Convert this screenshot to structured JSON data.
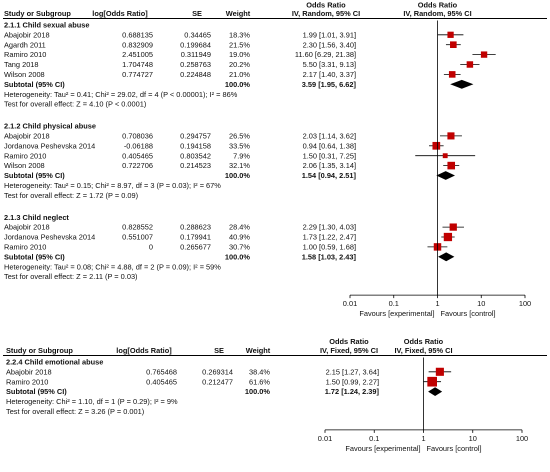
{
  "chart_data": [
    {
      "type": "forest",
      "headers": {
        "study": "Study or Subgroup",
        "logor": "log[Odds Ratio]",
        "se": "SE",
        "weight": "Weight",
        "or_title": "Odds Ratio",
        "ci": "IV, Random, 95% CI",
        "plot_title": "Odds Ratio",
        "plot_method": "IV, Random, 95% CI"
      },
      "axis": {
        "scale": "log",
        "ticks": [
          0.01,
          0.1,
          1,
          10,
          100
        ],
        "tick_labels": [
          "0.01",
          "0.1",
          "1",
          "10",
          "100"
        ]
      },
      "favours": {
        "left": "Favours [experimental]",
        "right": "Favours [control]"
      },
      "subgroups": [
        {
          "title": "2.1.1 Child sexual abuse",
          "studies": [
            {
              "name": "Abajobir 2018",
              "logor": "0.688135",
              "se": "0.34465",
              "weight": "18.3%",
              "ci": "1.99 [1.01, 3.91]",
              "or": 1.99,
              "lo": 1.01,
              "hi": 3.91,
              "w": 18.3
            },
            {
              "name": "Agardh 2011",
              "logor": "0.832909",
              "se": "0.199684",
              "weight": "21.5%",
              "ci": "2.30 [1.56, 3.40]",
              "or": 2.3,
              "lo": 1.56,
              "hi": 3.4,
              "w": 21.5
            },
            {
              "name": "Ramiro 2010",
              "logor": "2.451005",
              "se": "0.311949",
              "weight": "19.0%",
              "ci": "11.60 [6.29, 21.38]",
              "or": 11.6,
              "lo": 6.29,
              "hi": 21.38,
              "w": 19.0
            },
            {
              "name": "Tang 2018",
              "logor": "1.704748",
              "se": "0.258763",
              "weight": "20.2%",
              "ci": "5.50 [3.31, 9.13]",
              "or": 5.5,
              "lo": 3.31,
              "hi": 9.13,
              "w": 20.2
            },
            {
              "name": "Wilson 2008",
              "logor": "0.774727",
              "se": "0.224848",
              "weight": "21.0%",
              "ci": "2.17 [1.40, 3.37]",
              "or": 2.17,
              "lo": 1.4,
              "hi": 3.37,
              "w": 21.0
            }
          ],
          "subtotal": {
            "label": "Subtotal (95% CI)",
            "weight": "100.0%",
            "ci": "3.59 [1.95, 6.62]",
            "or": 3.59,
            "lo": 1.95,
            "hi": 6.62
          },
          "heterogeneity": "Heterogeneity: Tau² = 0.41; Chi² = 29.02, df = 4 (P < 0.00001); I² = 86%",
          "overall": "Test for overall effect: Z = 4.10 (P < 0.0001)"
        },
        {
          "title": "2.1.2 Child physical abuse",
          "studies": [
            {
              "name": "Abajobir 2018",
              "logor": "0.708036",
              "se": "0.294757",
              "weight": "26.5%",
              "ci": "2.03 [1.14, 3.62]",
              "or": 2.03,
              "lo": 1.14,
              "hi": 3.62,
              "w": 26.5
            },
            {
              "name": "Jordanova Peshevska 2014",
              "logor": "-0.06188",
              "se": "0.194158",
              "weight": "33.5%",
              "ci": "0.94 [0.64, 1.38]",
              "or": 0.94,
              "lo": 0.64,
              "hi": 1.38,
              "w": 33.5
            },
            {
              "name": "Ramiro 2010",
              "logor": "0.405465",
              "se": "0.803542",
              "weight": "7.9%",
              "ci": "1.50 [0.31, 7.25]",
              "or": 1.5,
              "lo": 0.31,
              "hi": 7.25,
              "w": 7.9
            },
            {
              "name": "Wilson 2008",
              "logor": "0.722706",
              "se": "0.214523",
              "weight": "32.1%",
              "ci": "2.06 [1.35, 3.14]",
              "or": 2.06,
              "lo": 1.35,
              "hi": 3.14,
              "w": 32.1
            }
          ],
          "subtotal": {
            "label": "Subtotal (95% CI)",
            "weight": "100.0%",
            "ci": "1.54 [0.94, 2.51]",
            "or": 1.54,
            "lo": 0.94,
            "hi": 2.51
          },
          "heterogeneity": "Heterogeneity: Tau² = 0.15; Chi² = 8.97, df = 3 (P = 0.03); I² = 67%",
          "overall": "Test for overall effect: Z = 1.72 (P = 0.09)"
        },
        {
          "title": "2.1.3 Child neglect",
          "studies": [
            {
              "name": "Abajobir 2018",
              "logor": "0.828552",
              "se": "0.288623",
              "weight": "28.4%",
              "ci": "2.29 [1.30, 4.03]",
              "or": 2.29,
              "lo": 1.3,
              "hi": 4.03,
              "w": 28.4
            },
            {
              "name": "Jordanova Peshevska 2014",
              "logor": "0.551007",
              "se": "0.179941",
              "weight": "40.9%",
              "ci": "1.73 [1.22, 2.47]",
              "or": 1.73,
              "lo": 1.22,
              "hi": 2.47,
              "w": 40.9
            },
            {
              "name": "Ramiro 2010",
              "logor": "0",
              "se": "0.265677",
              "weight": "30.7%",
              "ci": "1.00 [0.59, 1.68]",
              "or": 1.0,
              "lo": 0.59,
              "hi": 1.68,
              "w": 30.7
            }
          ],
          "subtotal": {
            "label": "Subtotal (95% CI)",
            "weight": "100.0%",
            "ci": "1.58 [1.03, 2.43]",
            "or": 1.58,
            "lo": 1.03,
            "hi": 2.43
          },
          "heterogeneity": "Heterogeneity: Tau² = 0.08; Chi² = 4.88, df = 2 (P = 0.09); I² = 59%",
          "overall": "Test for overall effect: Z = 2.11 (P = 0.03)"
        }
      ]
    },
    {
      "type": "forest",
      "headers": {
        "study": "Study or Subgroup",
        "logor": "log[Odds Ratio]",
        "se": "SE",
        "weight": "Weight",
        "or_title": "Odds Ratio",
        "ci": "IV, Fixed, 95% CI",
        "plot_title": "Odds Ratio",
        "plot_method": "IV, Fixed, 95% CI"
      },
      "axis": {
        "scale": "log",
        "ticks": [
          0.01,
          0.1,
          1,
          10,
          100
        ],
        "tick_labels": [
          "0.01",
          "0.1",
          "1",
          "10",
          "100"
        ]
      },
      "favours": {
        "left": "Favours [experimental]",
        "right": "Favours [control]"
      },
      "subgroups": [
        {
          "title": "2.2.4 Child emotional abuse",
          "studies": [
            {
              "name": "Abajobir 2018",
              "logor": "0.765468",
              "se": "0.269314",
              "weight": "38.4%",
              "ci": "2.15 [1.27, 3.64]",
              "or": 2.15,
              "lo": 1.27,
              "hi": 3.64,
              "w": 38.4
            },
            {
              "name": "Ramiro 2010",
              "logor": "0.405465",
              "se": "0.212477",
              "weight": "61.6%",
              "ci": "1.50 [0.99, 2.27]",
              "or": 1.5,
              "lo": 0.99,
              "hi": 2.27,
              "w": 61.6
            }
          ],
          "subtotal": {
            "label": "Subtotal (95% CI)",
            "weight": "100.0%",
            "ci": "1.72 [1.24, 2.39]",
            "or": 1.72,
            "lo": 1.24,
            "hi": 2.39
          },
          "heterogeneity": "Heterogeneity: Chi² = 1.10, df = 1 (P = 0.29); I² = 9%",
          "overall": "Test for overall effect: Z = 3.26 (P = 0.001)"
        }
      ]
    }
  ],
  "colors": {
    "marker": "#c00000",
    "diamond": "#000000",
    "text": "#111111",
    "rule": "#000000"
  }
}
